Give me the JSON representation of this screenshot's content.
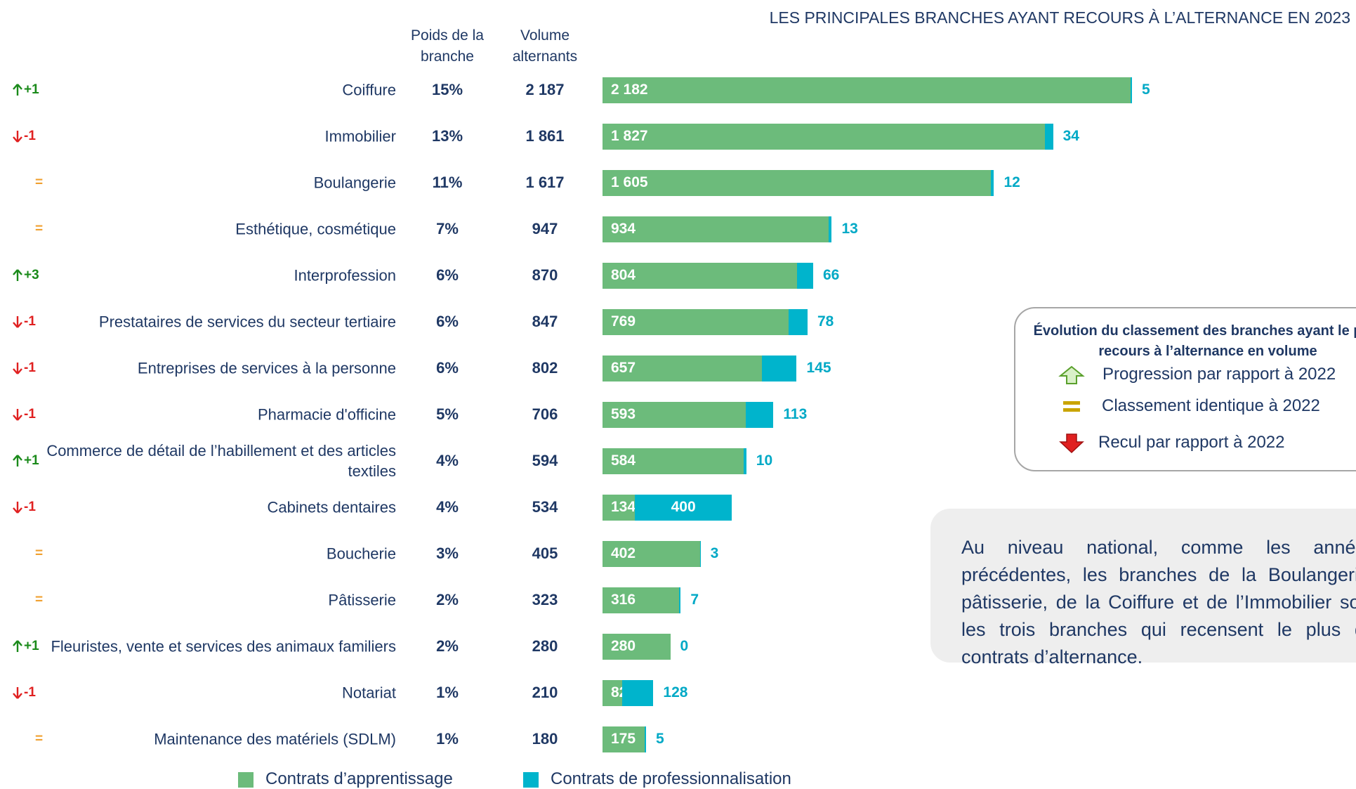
{
  "chart_data": {
    "type": "bar",
    "orientation": "horizontal",
    "stacked": true,
    "title": "LES PRINCIPALES BRANCHES AYANT RECOURS À L’ALTERNANCE EN 2023",
    "categories": [
      "Coiffure",
      "Immobilier",
      "Boulangerie",
      "Esthétique, cosmétique",
      "Interprofession",
      "Prestataires de services du secteur tertiaire",
      "Entreprises de services à la personne",
      "Pharmacie d'officine",
      "Commerce de détail de l’habillement et des articles textiles",
      "Cabinets dentaires",
      "Boucherie",
      "Pâtisserie",
      "Fleuristes, vente et services des animaux familiers",
      "Notariat",
      "Maintenance des matériels (SDLM)"
    ],
    "series": [
      {
        "name": "Contrats d’apprentissage",
        "color": "#6cbb7b",
        "values": [
          2182,
          1827,
          1605,
          934,
          804,
          769,
          657,
          593,
          584,
          134,
          402,
          316,
          280,
          82,
          175
        ],
        "value_labels": [
          "2 182",
          "1 827",
          "1 605",
          "934",
          "804",
          "769",
          "657",
          "593",
          "584",
          "134",
          "402",
          "316",
          "280",
          "82",
          "175"
        ]
      },
      {
        "name": "Contrats de professionnalisation",
        "color": "#00b4cc",
        "values": [
          5,
          34,
          12,
          13,
          66,
          78,
          145,
          113,
          10,
          400,
          3,
          7,
          0,
          128,
          5
        ]
      }
    ],
    "legend": "bottom"
  },
  "table": {
    "columns": [
      "Poids de la branche",
      "Volume alternants"
    ],
    "rank_change": [
      "+1",
      "-1",
      "=",
      "=",
      "+3",
      "-1",
      "-1",
      "-1",
      "+1",
      "-1",
      "=",
      "=",
      "+1",
      "-1",
      "="
    ],
    "weight": [
      "15%",
      "13%",
      "11%",
      "7%",
      "6%",
      "6%",
      "6%",
      "5%",
      "4%",
      "4%",
      "3%",
      "2%",
      "2%",
      "1%",
      "1%"
    ],
    "volume": [
      "2 187",
      "1 861",
      "1 617",
      "947",
      "870",
      "847",
      "802",
      "706",
      "594",
      "534",
      "405",
      "323",
      "280",
      "210",
      "180"
    ]
  },
  "rank_legend": {
    "title": "Évolution du classement des branches ayant le plus recours à l’alternance en volume",
    "items": [
      "Progression par rapport à 2022",
      "Classement identique à 2022",
      "Recul par rapport à 2022"
    ]
  },
  "note": "Au niveau national, comme les années précédentes, les branches de la Boulangerie-pâtisserie, de la Coiffure et de l’Immobilier sont les trois branches qui recensent le plus de contrats d’alternance."
}
